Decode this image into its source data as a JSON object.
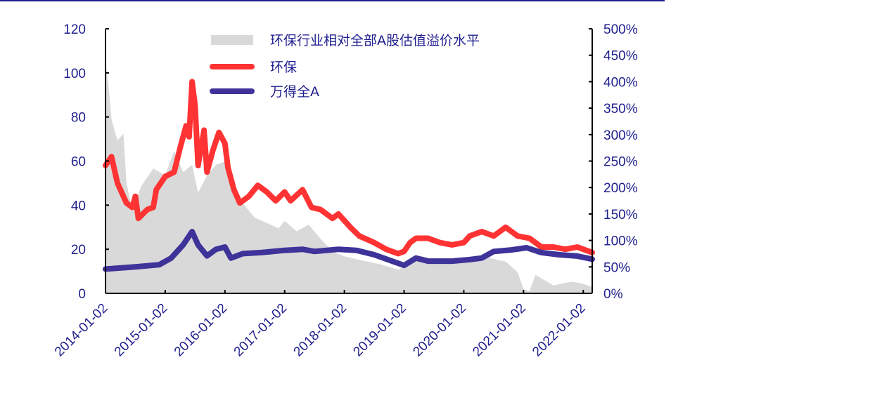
{
  "chart_data": {
    "type": "line",
    "title": "",
    "x_unit": "decimal year",
    "x_ticks": [
      "2014-01-02",
      "2015-01-02",
      "2016-01-02",
      "2017-01-02",
      "2018-01-02",
      "2019-01-02",
      "2020-01-02",
      "2021-01-02",
      "2022-01-02"
    ],
    "xlim": [
      2014.0,
      2022.15
    ],
    "left_axis": {
      "ylim": [
        0,
        120
      ],
      "ticks": [
        "0",
        "20",
        "40",
        "60",
        "80",
        "100",
        "120"
      ]
    },
    "right_axis": {
      "ylim": [
        0,
        500
      ],
      "ticks": [
        "0%",
        "50%",
        "100%",
        "150%",
        "200%",
        "250%",
        "300%",
        "350%",
        "400%",
        "450%",
        "500%"
      ]
    },
    "legend_position": "top-center",
    "series": [
      {
        "name": "环保行业相对全部A股估值溢价水平",
        "type": "area",
        "axis": "right",
        "color": "#d9d9d9",
        "x": [
          2014.0,
          2014.05,
          2014.1,
          2014.2,
          2014.3,
          2014.35,
          2014.45,
          2014.6,
          2014.8,
          2015.0,
          2015.15,
          2015.3,
          2015.45,
          2015.55,
          2015.7,
          2015.85,
          2016.0,
          2016.1,
          2016.3,
          2016.5,
          2016.7,
          2016.9,
          2017.0,
          2017.2,
          2017.4,
          2017.6,
          2017.8,
          2018.0,
          2018.3,
          2018.6,
          2018.9,
          2019.0,
          2019.3,
          2019.5,
          2019.8,
          2020.0,
          2020.3,
          2020.7,
          2020.9,
          2021.0,
          2021.1,
          2021.2,
          2021.5,
          2021.8,
          2022.0,
          2022.15
        ],
        "values": [
          435,
          395,
          329,
          289,
          302,
          210,
          156,
          203,
          236,
          223,
          269,
          229,
          243,
          190,
          223,
          243,
          249,
          196,
          170,
          143,
          133,
          123,
          137,
          117,
          130,
          103,
          80,
          70,
          62,
          55,
          45,
          50,
          70,
          65,
          60,
          62,
          70,
          60,
          40,
          8,
          4,
          35,
          15,
          22,
          18,
          12
        ]
      },
      {
        "name": "环保",
        "type": "line",
        "axis": "left",
        "color": "#ff3333",
        "x": [
          2014.0,
          2014.1,
          2014.2,
          2014.35,
          2014.45,
          2014.5,
          2014.55,
          2014.7,
          2014.8,
          2014.85,
          2015.0,
          2015.15,
          2015.25,
          2015.35,
          2015.4,
          2015.45,
          2015.5,
          2015.55,
          2015.65,
          2015.7,
          2015.8,
          2015.9,
          2016.0,
          2016.05,
          2016.15,
          2016.25,
          2016.4,
          2016.55,
          2016.7,
          2016.85,
          2017.0,
          2017.1,
          2017.3,
          2017.45,
          2017.6,
          2017.8,
          2017.9,
          2018.1,
          2018.25,
          2018.5,
          2018.7,
          2018.9,
          2019.0,
          2019.1,
          2019.2,
          2019.4,
          2019.6,
          2019.8,
          2020.0,
          2020.1,
          2020.3,
          2020.5,
          2020.7,
          2020.9,
          2021.1,
          2021.3,
          2021.5,
          2021.7,
          2021.9,
          2022.15
        ],
        "values": [
          58,
          62,
          50,
          41,
          39,
          44,
          34,
          38,
          39,
          47,
          53,
          55,
          66,
          76,
          71,
          96,
          85,
          58,
          74,
          55,
          65,
          73,
          68,
          57,
          47,
          41,
          44,
          49,
          46,
          42,
          46,
          42,
          47,
          39,
          38,
          34,
          36,
          30,
          26,
          23,
          20,
          18,
          19,
          23,
          25,
          25,
          23,
          22,
          23,
          26,
          28,
          26,
          30,
          26,
          25,
          21,
          21,
          20,
          21,
          18.5
        ]
      },
      {
        "name": "万得全A",
        "type": "line",
        "axis": "left",
        "color": "#3d3399",
        "x": [
          2014.0,
          2014.5,
          2014.9,
          2015.1,
          2015.3,
          2015.45,
          2015.55,
          2015.7,
          2015.85,
          2016.0,
          2016.1,
          2016.3,
          2016.6,
          2017.0,
          2017.3,
          2017.5,
          2017.9,
          2018.2,
          2018.5,
          2018.8,
          2019.0,
          2019.2,
          2019.4,
          2019.8,
          2020.1,
          2020.3,
          2020.5,
          2020.8,
          2021.05,
          2021.3,
          2021.6,
          2021.9,
          2022.15
        ],
        "values": [
          11,
          12,
          13,
          16,
          22,
          28,
          22,
          17,
          20,
          21,
          16,
          18,
          18.5,
          19.5,
          20,
          19,
          20,
          19.5,
          17.5,
          14.6,
          12.7,
          16,
          14.6,
          14.6,
          15.3,
          16,
          19,
          19.7,
          20.7,
          18.5,
          17.5,
          16.9,
          15.5
        ]
      }
    ]
  }
}
